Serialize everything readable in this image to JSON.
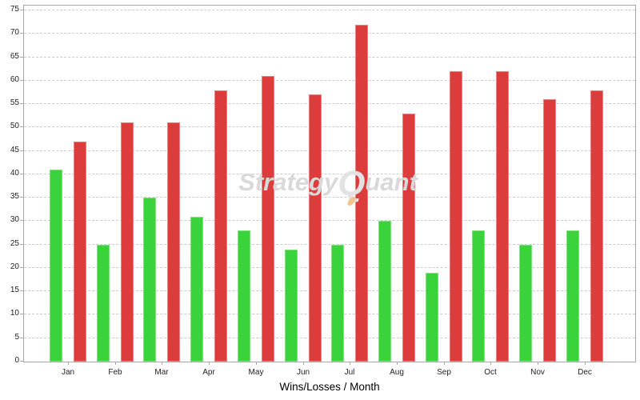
{
  "chart_data": {
    "type": "bar",
    "title": "",
    "xlabel": "Wins/Losses / Month",
    "ylabel": "",
    "categories": [
      "Jan",
      "Feb",
      "Mar",
      "Apr",
      "May",
      "Jun",
      "Jul",
      "Aug",
      "Sep",
      "Oct",
      "Nov",
      "Dec"
    ],
    "series": [
      {
        "name": "Wins",
        "color": "#3bd33b",
        "values": [
          41,
          25,
          35,
          31,
          28,
          24,
          25,
          30,
          19,
          28,
          25,
          28
        ]
      },
      {
        "name": "Losses",
        "color": "#dd3c3c",
        "values": [
          47,
          51,
          51,
          58,
          61,
          57,
          72,
          53,
          62,
          62,
          56,
          58
        ]
      }
    ],
    "ylim": [
      0,
      75
    ],
    "ytick_step": 5,
    "grid": "horizontal-dashed",
    "legend": "none"
  },
  "watermark": {
    "part1": "Strategy",
    "part2": "Q",
    "part3": "uant",
    "color": "#d9d9d9",
    "accent_color": "#f2c38e"
  },
  "colors": {
    "background": "#ffffff",
    "plot_border": "#a6a6a6",
    "gridline": "#cccccc",
    "tick_label": "#222222",
    "axis_title": "#000000"
  }
}
